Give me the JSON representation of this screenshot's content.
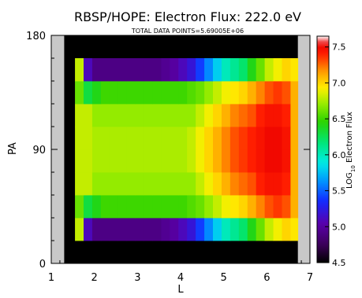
{
  "chart_data": {
    "type": "heatmap",
    "title": "RBSP/HOPE: Electron Flux: 222.0 eV",
    "subtitle": "TOTAL DATA POINTS=5.69005E+06",
    "xlabel": "L",
    "ylabel": "PA",
    "colorbar_label": "LOG10 Electron Flux",
    "colorbar_label_parts": {
      "pre": "LOG",
      "sub": "10",
      "post": " Electron Flux"
    },
    "xlim": [
      1,
      7
    ],
    "ylim": [
      0,
      180
    ],
    "x_ticks": [
      "1",
      "2",
      "3",
      "4",
      "5",
      "6",
      "7"
    ],
    "y_ticks": [
      "0",
      "90",
      "180"
    ],
    "colorbar_ticks": [
      "4.5",
      "5.0",
      "5.5",
      "6.0",
      "6.5",
      "7.0",
      "7.5"
    ],
    "zlim": [
      4.5,
      7.65
    ],
    "colormap": "rainbow-white",
    "background_color": "#000000",
    "no_data_color": "#c8c8c8",
    "no_data_columns": [
      [
        1.0,
        1.3
      ],
      [
        6.72,
        7.0
      ]
    ],
    "grid": false,
    "cell_x_edges": [
      1.55,
      1.75,
      1.95,
      2.15,
      2.35,
      2.55,
      2.75,
      2.95,
      3.15,
      3.35,
      3.55,
      3.75,
      3.95,
      4.15,
      4.35,
      4.55,
      4.75,
      4.95,
      5.15,
      5.35,
      5.55,
      5.75,
      5.95,
      6.15,
      6.35,
      6.55,
      6.72
    ],
    "cell_y_edges": [
      18,
      36,
      54,
      72,
      90,
      108,
      126,
      144,
      162
    ],
    "rows": [
      {
        "pa": 27,
        "values": [
          6.8,
          5.1,
          4.9,
          4.9,
          4.9,
          4.9,
          4.9,
          4.9,
          4.9,
          4.9,
          4.95,
          5.0,
          5.1,
          5.2,
          5.4,
          5.6,
          5.8,
          6.0,
          6.1,
          6.2,
          6.4,
          6.6,
          6.8,
          6.9,
          7.0,
          6.95
        ]
      },
      {
        "pa": 45,
        "values": [
          6.6,
          6.3,
          6.4,
          6.5,
          6.5,
          6.5,
          6.5,
          6.5,
          6.5,
          6.5,
          6.5,
          6.5,
          6.5,
          6.55,
          6.6,
          6.7,
          6.8,
          6.9,
          6.95,
          7.0,
          7.1,
          7.2,
          7.3,
          7.35,
          7.3,
          7.1
        ]
      },
      {
        "pa": 63,
        "values": [
          6.8,
          6.8,
          6.7,
          6.7,
          6.7,
          6.7,
          6.7,
          6.7,
          6.7,
          6.7,
          6.7,
          6.7,
          6.7,
          6.7,
          6.8,
          6.9,
          7.0,
          7.1,
          7.2,
          7.25,
          7.3,
          7.4,
          7.45,
          7.45,
          7.4,
          7.1
        ]
      },
      {
        "pa": 81,
        "values": [
          6.8,
          6.8,
          6.75,
          6.75,
          6.75,
          6.75,
          6.75,
          6.75,
          6.75,
          6.75,
          6.75,
          6.75,
          6.75,
          6.8,
          6.9,
          7.0,
          7.1,
          7.2,
          7.3,
          7.35,
          7.4,
          7.45,
          7.5,
          7.5,
          7.45,
          7.1
        ]
      },
      {
        "pa": 99,
        "values": [
          6.8,
          6.8,
          6.75,
          6.75,
          6.75,
          6.75,
          6.75,
          6.75,
          6.75,
          6.75,
          6.75,
          6.75,
          6.75,
          6.8,
          6.9,
          7.0,
          7.1,
          7.2,
          7.3,
          7.35,
          7.4,
          7.45,
          7.5,
          7.5,
          7.45,
          7.1
        ]
      },
      {
        "pa": 117,
        "values": [
          6.8,
          6.8,
          6.7,
          6.7,
          6.7,
          6.7,
          6.7,
          6.7,
          6.7,
          6.7,
          6.7,
          6.7,
          6.7,
          6.7,
          6.8,
          6.9,
          7.0,
          7.1,
          7.2,
          7.25,
          7.3,
          7.4,
          7.45,
          7.45,
          7.4,
          7.1
        ]
      },
      {
        "pa": 135,
        "values": [
          6.6,
          6.3,
          6.4,
          6.5,
          6.5,
          6.5,
          6.5,
          6.5,
          6.5,
          6.5,
          6.5,
          6.5,
          6.5,
          6.55,
          6.6,
          6.7,
          6.8,
          6.9,
          6.95,
          7.0,
          7.1,
          7.2,
          7.3,
          7.35,
          7.3,
          7.1
        ]
      },
      {
        "pa": 153,
        "values": [
          6.8,
          5.1,
          4.9,
          4.9,
          4.9,
          4.9,
          4.9,
          4.9,
          4.9,
          4.9,
          4.95,
          5.0,
          5.1,
          5.2,
          5.4,
          5.6,
          5.8,
          6.0,
          6.1,
          6.2,
          6.4,
          6.6,
          6.8,
          6.9,
          7.0,
          6.95
        ]
      }
    ]
  }
}
